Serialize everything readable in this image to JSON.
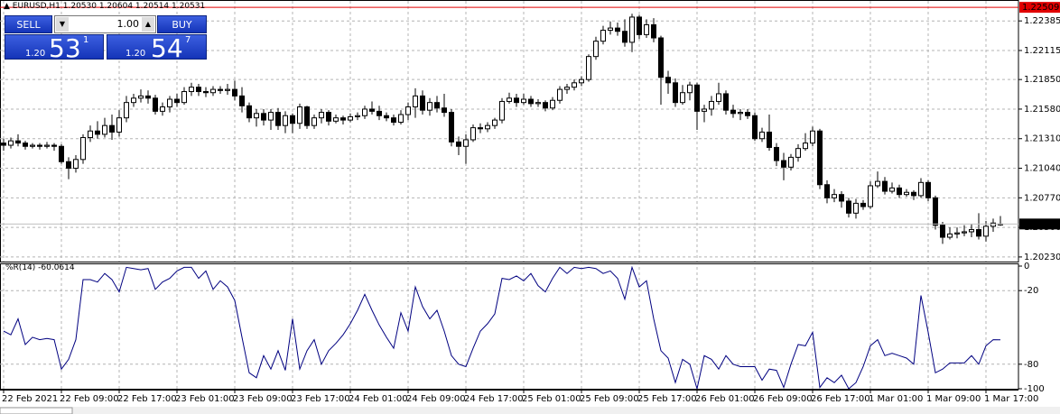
{
  "header": "EURUSD,H1  1.20530 1.20604 1.20514 1.20531",
  "trade_panel": {
    "sell": "SELL",
    "buy": "BUY",
    "lot": "1.00",
    "sell_price": {
      "prefix": "1.20",
      "big": "53",
      "sup": "1"
    },
    "buy_price": {
      "prefix": "1.20",
      "big": "54",
      "sup": "7"
    }
  },
  "chart_data": [
    {
      "type": "candlestick",
      "up_color": "#ffffff",
      "down_color": "#000000",
      "grid": true,
      "ylim": [
        1.20188,
        1.22576
      ],
      "yticks": [
        {
          "value": 1.22385,
          "label": "1.22385"
        },
        {
          "value": 1.22115,
          "label": "1.22115"
        },
        {
          "value": 1.2185,
          "label": "1.21850"
        },
        {
          "value": 1.2158,
          "label": "1.21580"
        },
        {
          "value": 1.2131,
          "label": "1.21310"
        },
        {
          "value": 1.2104,
          "label": "1.21040"
        },
        {
          "value": 1.2077,
          "label": "1.20770"
        },
        {
          "value": 1.205,
          "label": "1.20500"
        },
        {
          "value": 1.2023,
          "label": "1.20230"
        }
      ],
      "price_lines": [
        {
          "value": 1.22509,
          "color": "#e00000"
        },
        {
          "value": 1.20531,
          "color": "#000000"
        }
      ],
      "open": [
        1.2127,
        1.2125,
        1.2129,
        1.2127,
        1.2124,
        1.2125,
        1.2124,
        1.2125,
        1.2124,
        1.211,
        1.2104,
        1.2112,
        1.2132,
        1.2138,
        1.2135,
        1.2143,
        1.2137,
        1.215,
        1.2164,
        1.2168,
        1.217,
        1.2168,
        1.2156,
        1.216,
        1.2167,
        1.2164,
        1.2174,
        1.2178,
        1.2174,
        1.2173,
        1.2176,
        1.2175,
        1.2176,
        1.217,
        1.2161,
        1.215,
        1.2154,
        1.2148,
        1.2155,
        1.2143,
        1.2152,
        1.2145,
        1.216,
        1.2143,
        1.215,
        1.2155,
        1.2147,
        1.215,
        1.2148,
        1.2151,
        1.2152,
        1.2158,
        1.2156,
        1.2152,
        1.215,
        1.2146,
        1.2153,
        1.216,
        1.217,
        1.2157,
        1.2164,
        1.2159,
        1.2155,
        1.2128,
        1.2124,
        1.213,
        1.2141,
        1.214,
        1.2143,
        1.2148,
        1.2165,
        1.2168,
        1.2164,
        1.2167,
        1.2163,
        1.2164,
        1.2159,
        1.2166,
        1.2176,
        1.2178,
        1.2182,
        1.2185,
        1.2206,
        1.222,
        1.223,
        1.2232,
        1.2229,
        1.2219,
        1.2242,
        1.2226,
        1.2235,
        1.2223,
        1.2187,
        1.2182,
        1.2164,
        1.2173,
        1.218,
        1.2156,
        1.2158,
        1.2165,
        1.2172,
        1.2157,
        1.2154,
        1.2155,
        1.2152,
        1.2131,
        1.2137,
        1.2123,
        1.2111,
        1.2105,
        1.2114,
        1.2122,
        1.2127,
        1.2138,
        1.2089,
        1.2077,
        1.208,
        1.2074,
        1.2063,
        1.2072,
        1.2069,
        1.2088,
        1.2092,
        1.2083,
        1.2086,
        1.208,
        1.2082,
        1.2079,
        1.2091,
        1.2077,
        1.2052,
        1.2041,
        1.2044,
        1.2045,
        1.2046,
        1.2048,
        1.2042,
        1.2051,
        1.2053
      ],
      "high": [
        1.2131,
        1.2132,
        1.2135,
        1.2129,
        1.2127,
        1.2127,
        1.2128,
        1.2127,
        1.2126,
        1.2114,
        1.2116,
        1.2135,
        1.2143,
        1.2147,
        1.215,
        1.2153,
        1.2157,
        1.217,
        1.2172,
        1.2176,
        1.2175,
        1.2171,
        1.2164,
        1.217,
        1.2172,
        1.2178,
        1.2182,
        1.2181,
        1.2178,
        1.2179,
        1.2179,
        1.2181,
        1.2184,
        1.2178,
        1.2164,
        1.2158,
        1.2158,
        1.2158,
        1.2159,
        1.2156,
        1.2154,
        1.2163,
        1.2161,
        1.2153,
        1.2158,
        1.2157,
        1.2153,
        1.2152,
        1.2154,
        1.2155,
        1.2161,
        1.2165,
        1.2161,
        1.2155,
        1.2153,
        1.2157,
        1.2164,
        1.2177,
        1.2175,
        1.2168,
        1.217,
        1.2172,
        1.2158,
        1.2133,
        1.2135,
        1.2144,
        1.2145,
        1.2146,
        1.215,
        1.2168,
        1.2173,
        1.2172,
        1.2172,
        1.217,
        1.2167,
        1.2166,
        1.2169,
        1.2179,
        1.2181,
        1.2185,
        1.2188,
        1.2208,
        1.2224,
        1.2234,
        1.2238,
        1.2237,
        1.224,
        1.2245,
        1.2244,
        1.224,
        1.2241,
        1.2225,
        1.2193,
        1.2186,
        1.218,
        1.2183,
        1.2182,
        1.2162,
        1.217,
        1.2182,
        1.2175,
        1.2162,
        1.2158,
        1.2158,
        1.2155,
        1.2141,
        1.2153,
        1.2127,
        1.2118,
        1.2117,
        1.2126,
        1.2136,
        1.2142,
        1.214,
        1.2093,
        1.2085,
        1.2083,
        1.2077,
        1.2076,
        1.2075,
        1.2092,
        1.2101,
        1.2096,
        1.2091,
        1.2089,
        1.2085,
        1.2084,
        1.2095,
        1.2093,
        1.2079,
        1.2055,
        1.205,
        1.205,
        1.2052,
        1.2053,
        1.2063,
        1.2056,
        1.2058,
        1.20604
      ],
      "low": [
        1.212,
        1.2122,
        1.2124,
        1.2121,
        1.2122,
        1.2121,
        1.2122,
        1.212,
        1.2108,
        1.2094,
        1.21,
        1.2108,
        1.2128,
        1.2131,
        1.2132,
        1.213,
        1.2133,
        1.2146,
        1.216,
        1.2164,
        1.2163,
        1.2153,
        1.2152,
        1.2155,
        1.216,
        1.2162,
        1.217,
        1.217,
        1.2169,
        1.217,
        1.2172,
        1.2171,
        1.2166,
        1.2155,
        1.2146,
        1.2142,
        1.2143,
        1.2139,
        1.2139,
        1.2136,
        1.2136,
        1.214,
        1.214,
        1.214,
        1.2145,
        1.2143,
        1.2145,
        1.2144,
        1.2146,
        1.2148,
        1.2149,
        1.2153,
        1.2148,
        1.2147,
        1.2143,
        1.2144,
        1.2148,
        1.215,
        1.2153,
        1.2152,
        1.2155,
        1.2151,
        1.2124,
        1.2116,
        1.2108,
        1.2128,
        1.2136,
        1.2137,
        1.214,
        1.2145,
        1.2163,
        1.216,
        1.2162,
        1.216,
        1.216,
        1.2156,
        1.2157,
        1.2163,
        1.2172,
        1.2175,
        1.2179,
        1.2183,
        1.2203,
        1.2217,
        1.2226,
        1.2225,
        1.2215,
        1.221,
        1.2222,
        1.2223,
        1.2219,
        1.2162,
        1.2172,
        1.216,
        1.2162,
        1.2166,
        1.2139,
        1.2146,
        1.2152,
        1.2162,
        1.2153,
        1.215,
        1.2148,
        1.2149,
        1.2129,
        1.2128,
        1.212,
        1.2106,
        1.2093,
        1.2102,
        1.211,
        1.212,
        1.2124,
        1.2085,
        1.2072,
        1.2073,
        1.2068,
        1.2059,
        1.2058,
        1.2066,
        1.2067,
        1.2086,
        1.208,
        1.2081,
        1.2077,
        1.2078,
        1.2075,
        1.2077,
        1.2074,
        1.2048,
        1.2035,
        1.2039,
        1.204,
        1.2042,
        1.2041,
        1.2039,
        1.2037,
        1.2046,
        1.20514
      ],
      "close": [
        1.2125,
        1.2129,
        1.2127,
        1.2124,
        1.2125,
        1.2124,
        1.2125,
        1.2124,
        1.211,
        1.2104,
        1.2112,
        1.2132,
        1.2138,
        1.2135,
        1.2143,
        1.2137,
        1.215,
        1.2164,
        1.2168,
        1.217,
        1.2168,
        1.2156,
        1.216,
        1.2167,
        1.2164,
        1.2174,
        1.2178,
        1.2174,
        1.2173,
        1.2176,
        1.2175,
        1.2176,
        1.217,
        1.2161,
        1.215,
        1.2154,
        1.2148,
        1.2155,
        1.2143,
        1.2152,
        1.2145,
        1.216,
        1.2143,
        1.215,
        1.2155,
        1.2147,
        1.215,
        1.2148,
        1.2151,
        1.2152,
        1.2158,
        1.2156,
        1.2152,
        1.215,
        1.2146,
        1.2153,
        1.216,
        1.217,
        1.2157,
        1.2164,
        1.2159,
        1.2155,
        1.2128,
        1.2124,
        1.213,
        1.2141,
        1.214,
        1.2143,
        1.2148,
        1.2165,
        1.2168,
        1.2164,
        1.2167,
        1.2163,
        1.2164,
        1.2159,
        1.2166,
        1.2176,
        1.2178,
        1.2182,
        1.2185,
        1.2206,
        1.222,
        1.223,
        1.2232,
        1.2229,
        1.2219,
        1.2242,
        1.2226,
        1.2235,
        1.2223,
        1.2187,
        1.2182,
        1.2164,
        1.2173,
        1.218,
        1.2156,
        1.2158,
        1.2165,
        1.2172,
        1.2157,
        1.2154,
        1.2155,
        1.2152,
        1.2131,
        1.2137,
        1.2123,
        1.2111,
        1.2105,
        1.2114,
        1.2122,
        1.2127,
        1.2138,
        1.2089,
        1.2077,
        1.208,
        1.2074,
        1.2063,
        1.2072,
        1.2069,
        1.2088,
        1.2092,
        1.2083,
        1.2086,
        1.208,
        1.2082,
        1.2079,
        1.2091,
        1.2077,
        1.2052,
        1.2041,
        1.2044,
        1.2045,
        1.2046,
        1.2048,
        1.2042,
        1.2051,
        1.2054,
        1.20531
      ]
    },
    {
      "type": "line",
      "title": "%R(14) -60.0614",
      "color": "#000080",
      "grid": true,
      "ylim": [
        -100,
        0
      ],
      "yticks": [
        0,
        -20,
        -80,
        -100
      ],
      "categories": [
        "22 Feb 2021",
        null,
        null,
        null,
        null,
        null,
        null,
        null,
        "22 Feb 09:00",
        null,
        null,
        null,
        null,
        null,
        null,
        null,
        "22 Feb 17:00",
        null,
        null,
        null,
        null,
        null,
        null,
        null,
        "23 Feb 01:00",
        null,
        null,
        null,
        null,
        null,
        null,
        null,
        "23 Feb 09:00",
        null,
        null,
        null,
        null,
        null,
        null,
        null,
        "23 Feb 17:00",
        null,
        null,
        null,
        null,
        null,
        null,
        null,
        "24 Feb 01:00",
        null,
        null,
        null,
        null,
        null,
        null,
        null,
        "24 Feb 09:00",
        null,
        null,
        null,
        null,
        null,
        null,
        null,
        "24 Feb 17:00",
        null,
        null,
        null,
        null,
        null,
        null,
        null,
        "25 Feb 01:00",
        null,
        null,
        null,
        null,
        null,
        null,
        null,
        "25 Feb 09:00",
        null,
        null,
        null,
        null,
        null,
        null,
        null,
        "25 Feb 17:00",
        null,
        null,
        null,
        null,
        null,
        null,
        null,
        "26 Feb 01:00",
        null,
        null,
        null,
        null,
        null,
        null,
        null,
        "26 Feb 09:00",
        null,
        null,
        null,
        null,
        null,
        null,
        null,
        "26 Feb 17:00",
        null,
        null,
        null,
        null,
        null,
        null,
        null,
        "1 Mar 01:00",
        null,
        null,
        null,
        null,
        null,
        null,
        null,
        "1 Mar 09:00",
        null,
        null,
        null,
        null,
        null,
        null,
        null,
        "1 Mar 17:00",
        null,
        null
      ],
      "values": [
        -53,
        -56,
        -43,
        -64,
        -58,
        -60,
        -59,
        -60,
        -84,
        -76,
        -60,
        -11,
        -11,
        -13,
        -6,
        -11,
        -21,
        -1,
        -2,
        -3,
        -2,
        -19,
        -13,
        -10,
        -4,
        -1,
        -1,
        -10,
        -4,
        -19,
        -12,
        -17,
        -28,
        -58,
        -87,
        -91,
        -73,
        -84,
        -69,
        -85,
        -43,
        -84,
        -69,
        -60,
        -80,
        -69,
        -63,
        -56,
        -47,
        -36,
        -23,
        -36,
        -48,
        -58,
        -67,
        -38,
        -53,
        -17,
        -33,
        -43,
        -36,
        -53,
        -73,
        -80,
        -82,
        -67,
        -53,
        -47,
        -39,
        -10,
        -11,
        -8,
        -12,
        -6,
        -16,
        -21,
        -10,
        -1,
        -6,
        -1,
        -2,
        -1,
        -2,
        -6,
        -4,
        -10,
        -27,
        -1,
        -17,
        -12,
        -43,
        -69,
        -75,
        -95,
        -76,
        -80,
        -100,
        -73,
        -76,
        -84,
        -73,
        -80,
        -82,
        -82,
        -82,
        -93,
        -84,
        -85,
        -99,
        -80,
        -64,
        -65,
        -54,
        -99,
        -91,
        -95,
        -89,
        -100,
        -95,
        -82,
        -65,
        -60,
        -73,
        -71,
        -73,
        -75,
        -80,
        -24,
        -54,
        -87,
        -84,
        -79,
        -79,
        -79,
        -73,
        -80,
        -65,
        -60,
        -60.0614
      ]
    }
  ]
}
